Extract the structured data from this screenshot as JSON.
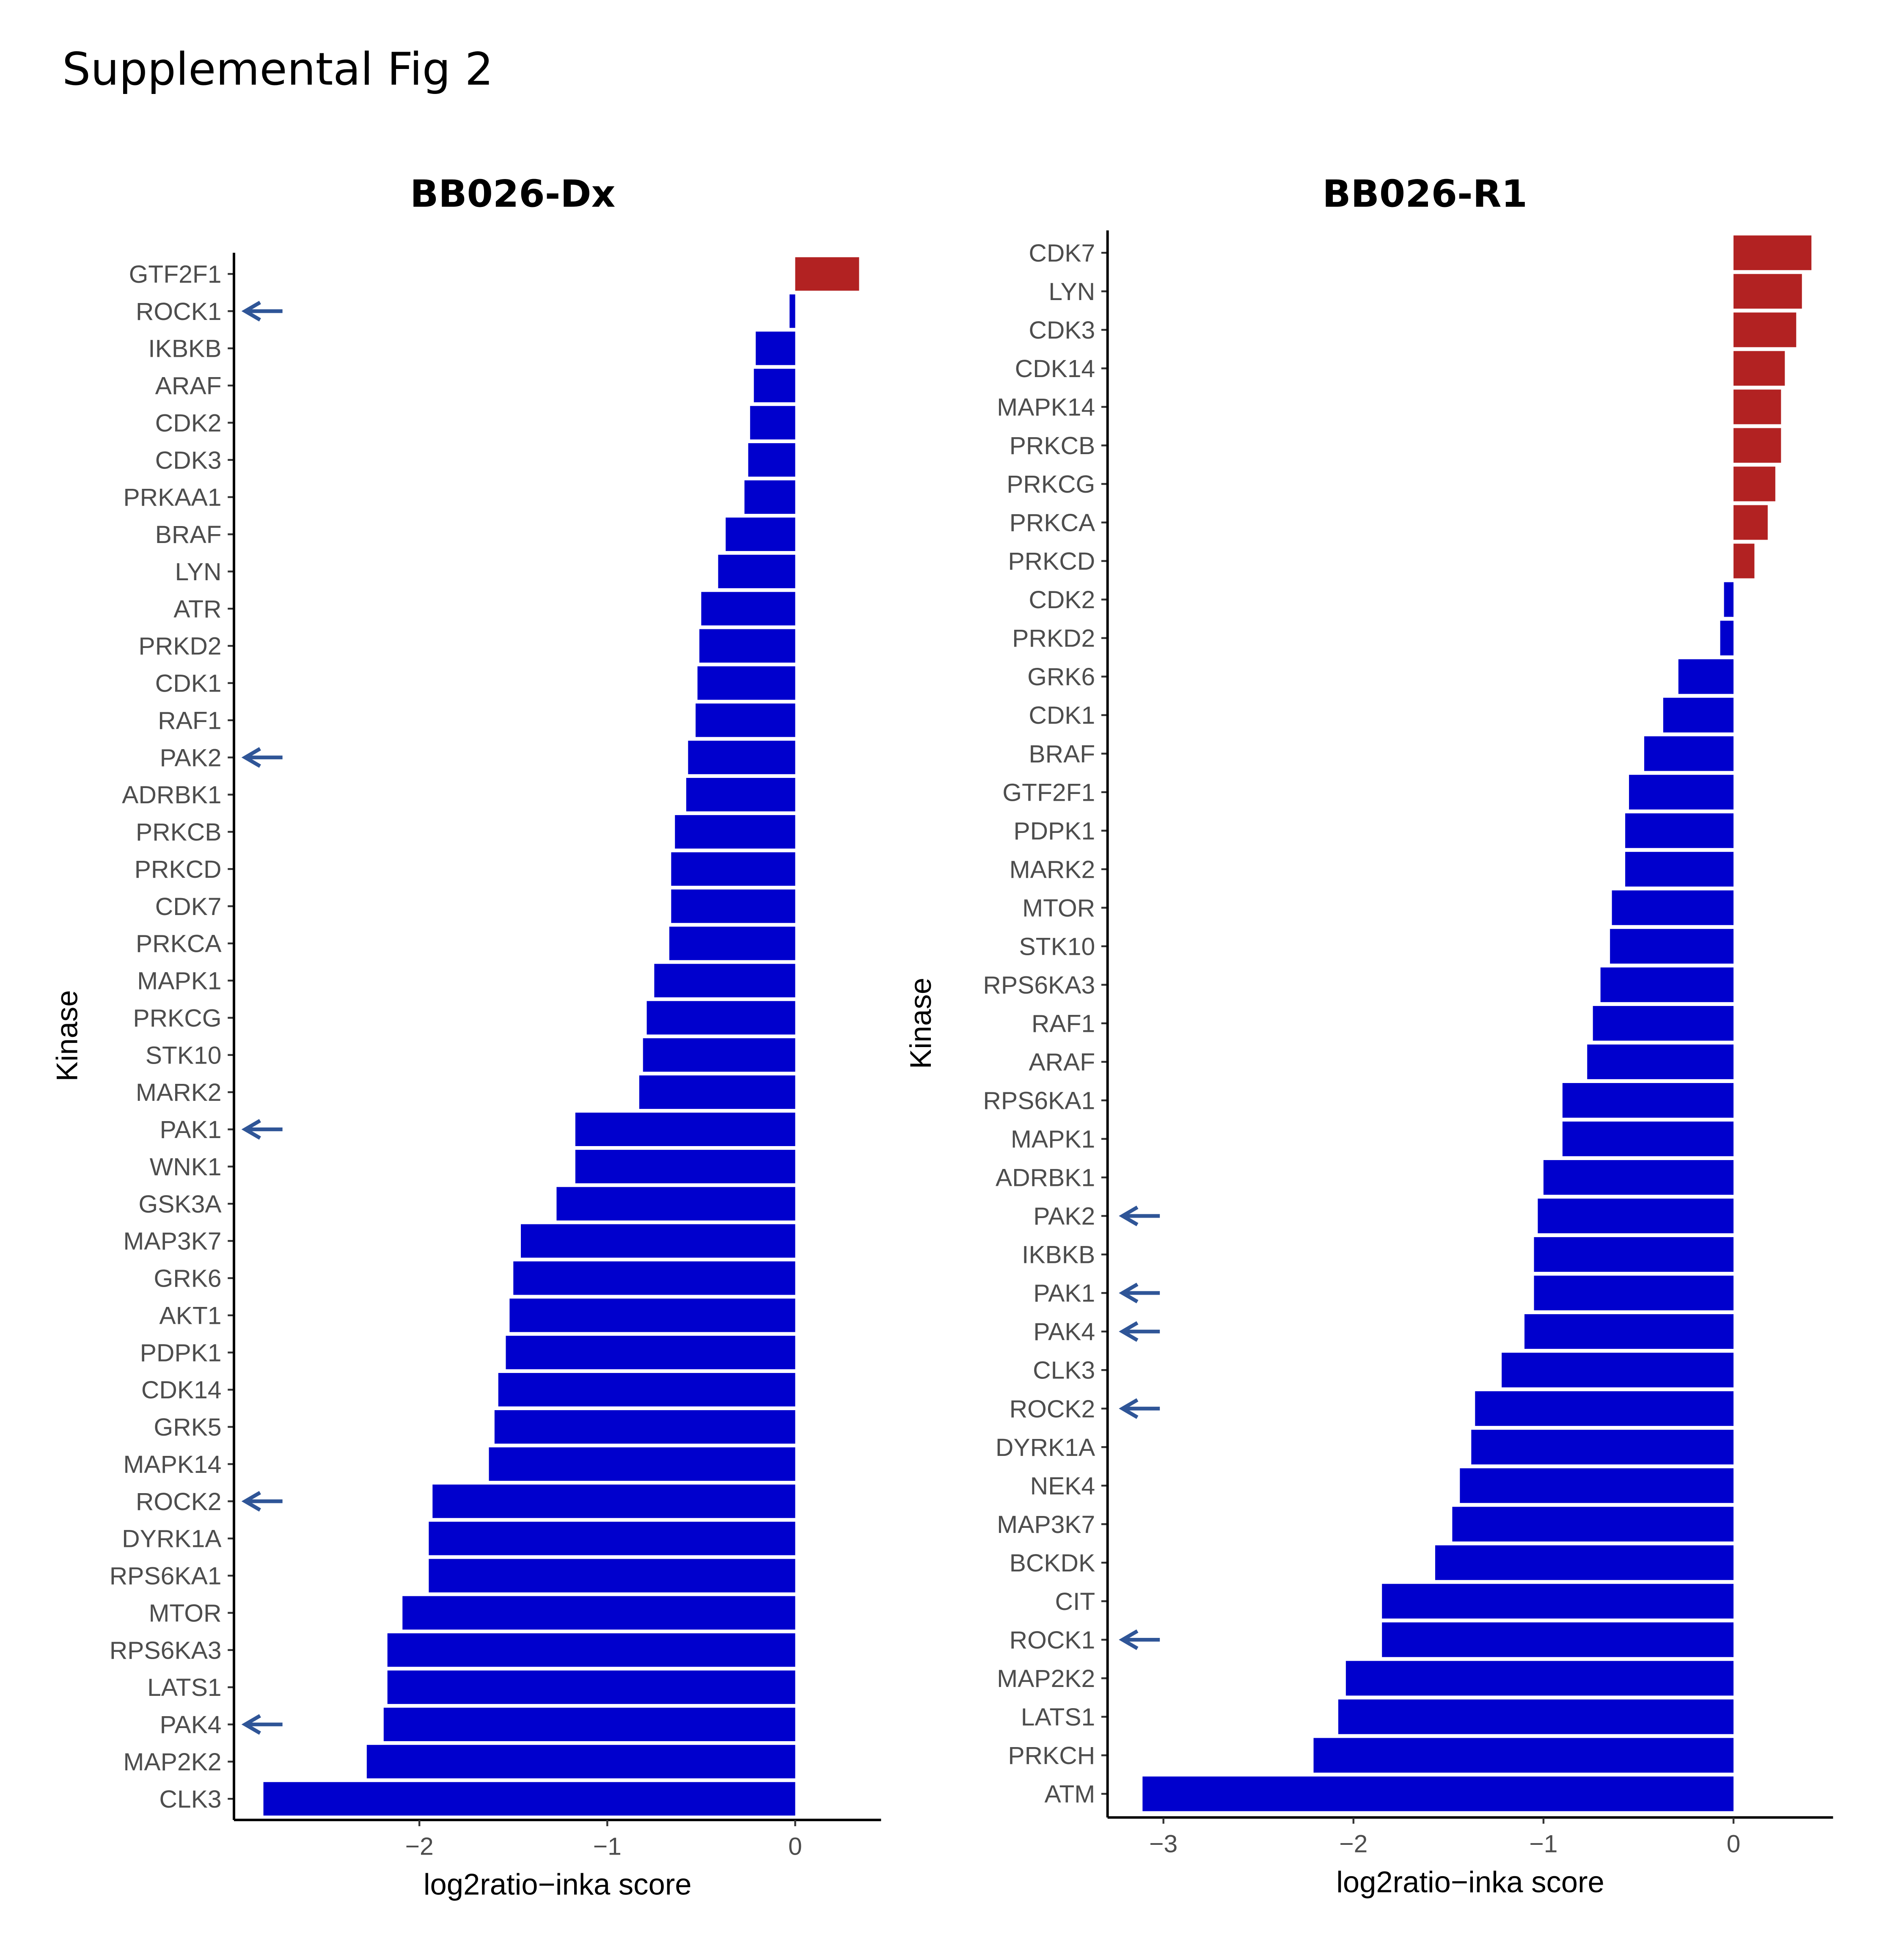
{
  "figure_title": "Supplemental Fig 2",
  "colors": {
    "positive": "#b22222",
    "negative": "#0000cd",
    "arrow": "#2f5597"
  },
  "chart_data": [
    {
      "type": "bar",
      "orientation": "horizontal",
      "title": "BB026-Dx",
      "xlabel": "log2ratio−inka score",
      "ylabel": "Kinase",
      "xlim": [
        -2.9,
        0.45
      ],
      "xticks": [
        -2,
        -1,
        0
      ],
      "xtick_labels": [
        "−2",
        "−1",
        "0"
      ],
      "categories": [
        "GTF2F1",
        "ROCK1",
        "IKBKB",
        "ARAF",
        "CDK2",
        "CDK3",
        "PRKAA1",
        "BRAF",
        "LYN",
        "ATR",
        "PRKD2",
        "CDK1",
        "RAF1",
        "PAK2",
        "ADRBK1",
        "PRKCB",
        "PRKCD",
        "CDK7",
        "PRKCA",
        "MAPK1",
        "PRKCG",
        "STK10",
        "MARK2",
        "PAK1",
        "WNK1",
        "GSK3A",
        "MAP3K7",
        "GRK6",
        "AKT1",
        "PDPK1",
        "CDK14",
        "GRK5",
        "MAPK14",
        "ROCK2",
        "DYRK1A",
        "RPS6KA1",
        "MTOR",
        "RPS6KA3",
        "LATS1",
        "PAK4",
        "MAP2K2",
        "CLK3"
      ],
      "values": [
        0.34,
        -0.03,
        -0.21,
        -0.22,
        -0.24,
        -0.25,
        -0.27,
        -0.37,
        -0.41,
        -0.5,
        -0.51,
        -0.52,
        -0.53,
        -0.57,
        -0.58,
        -0.64,
        -0.66,
        -0.66,
        -0.67,
        -0.75,
        -0.79,
        -0.81,
        -0.83,
        -1.17,
        -1.17,
        -1.27,
        -1.46,
        -1.5,
        -1.52,
        -1.54,
        -1.58,
        -1.6,
        -1.63,
        -1.93,
        -1.95,
        -1.95,
        -2.09,
        -2.17,
        -2.17,
        -2.19,
        -2.28,
        -2.83
      ],
      "arrows": [
        "ROCK1",
        "PAK2",
        "PAK1",
        "ROCK2",
        "PAK4"
      ]
    },
    {
      "type": "bar",
      "orientation": "horizontal",
      "title": "BB026-R1",
      "xlabel": "log2ratio−inka score",
      "ylabel": "Kinase",
      "xlim": [
        -3.2,
        0.53
      ],
      "xticks": [
        -3,
        -2,
        -1,
        0
      ],
      "xtick_labels": [
        "−3",
        "−2",
        "−1",
        "0"
      ],
      "categories": [
        "CDK7",
        "LYN",
        "CDK3",
        "CDK14",
        "MAPK14",
        "PRKCB",
        "PRKCG",
        "PRKCA",
        "PRKCD",
        "CDK2",
        "PRKD2",
        "GRK6",
        "CDK1",
        "BRAF",
        "GTF2F1",
        "PDPK1",
        "MARK2",
        "MTOR",
        "STK10",
        "RPS6KA3",
        "RAF1",
        "ARAF",
        "RPS6KA1",
        "MAPK1",
        "ADRBK1",
        "PAK2",
        "IKBKB",
        "PAK1",
        "PAK4",
        "CLK3",
        "ROCK2",
        "DYRK1A",
        "NEK4",
        "MAP3K7",
        "BCKDK",
        "CIT",
        "ROCK1",
        "MAP2K2",
        "LATS1",
        "PRKCH",
        "ATM"
      ],
      "values": [
        0.41,
        0.36,
        0.33,
        0.27,
        0.25,
        0.25,
        0.22,
        0.18,
        0.11,
        -0.05,
        -0.07,
        -0.29,
        -0.37,
        -0.47,
        -0.55,
        -0.57,
        -0.57,
        -0.64,
        -0.65,
        -0.7,
        -0.74,
        -0.77,
        -0.9,
        -0.9,
        -1.0,
        -1.03,
        -1.05,
        -1.05,
        -1.1,
        -1.22,
        -1.36,
        -1.38,
        -1.44,
        -1.48,
        -1.57,
        -1.85,
        -1.85,
        -2.04,
        -2.08,
        -2.21,
        -3.11
      ],
      "arrows": [
        "PAK2",
        "PAK1",
        "PAK4",
        "ROCK2",
        "ROCK1"
      ]
    }
  ]
}
